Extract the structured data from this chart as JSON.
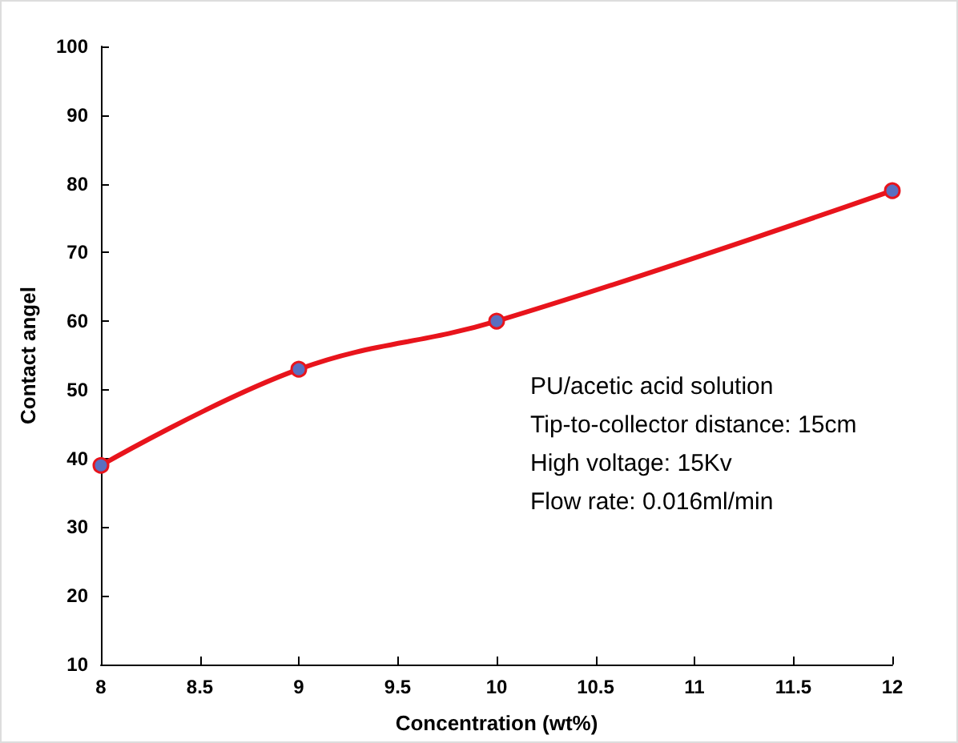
{
  "chart_data": {
    "type": "line",
    "xlabel": "Concentration (wt%)",
    "ylabel": "Contact angel",
    "x": [
      8,
      9,
      10,
      12
    ],
    "series": [
      {
        "color": "#e8141c",
        "values": [
          39,
          53,
          60,
          79
        ]
      }
    ],
    "xlim": [
      8,
      12
    ],
    "xticks": [
      8,
      8.5,
      9,
      9.5,
      10,
      10.5,
      11,
      11.5,
      12
    ],
    "ylim": [
      10,
      100
    ],
    "yticks": [
      10,
      20,
      30,
      40,
      50,
      60,
      70,
      80,
      90,
      100
    ],
    "marker": "circle",
    "line_style": "solid",
    "annotations": [
      "PU/acetic acid solution",
      "Tip-to-collector distance: 15cm",
      "High voltage: 15Kv",
      "Flow rate: 0.016ml/min"
    ]
  }
}
